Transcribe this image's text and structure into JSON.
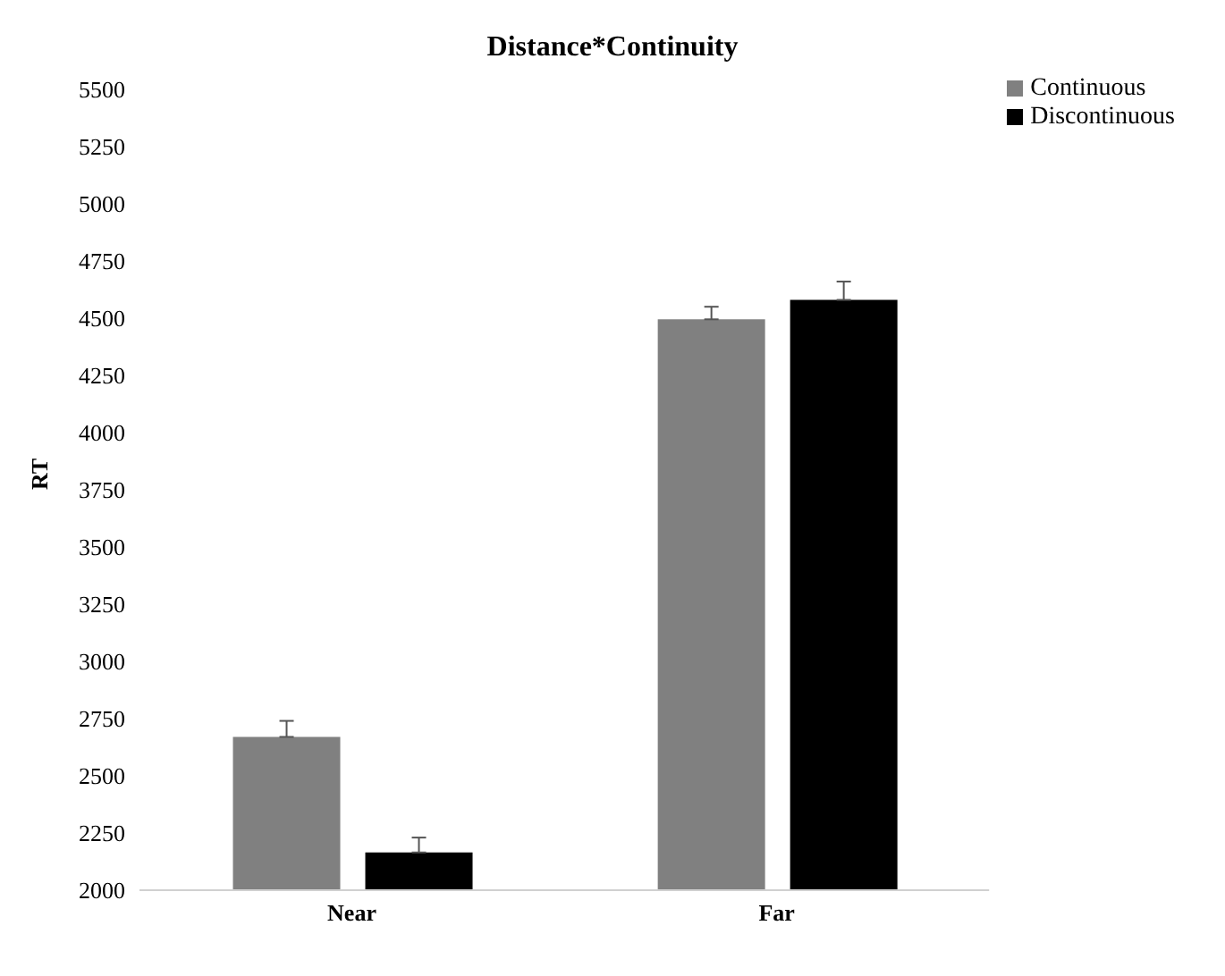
{
  "chart_data": {
    "type": "bar",
    "title": "Distance*Continuity",
    "ylabel": "RT",
    "categories": [
      "Near",
      "Far"
    ],
    "series": [
      {
        "name": "Continuous",
        "color": "#808080",
        "values": [
          2670,
          4495
        ],
        "errors": [
          [
            2670,
            2740
          ],
          [
            4495,
            4550
          ]
        ]
      },
      {
        "name": "Discontinuous",
        "color": "#000000",
        "values": [
          2165,
          4580
        ],
        "errors": [
          [
            2165,
            2230
          ],
          [
            4580,
            4660
          ]
        ]
      }
    ],
    "ylim": [
      2000,
      5500
    ],
    "yticks": [
      2000,
      2250,
      2500,
      2750,
      3000,
      3250,
      3500,
      3750,
      4000,
      4250,
      4500,
      4750,
      5000,
      5250,
      5500
    ],
    "grid": false,
    "legend": "top right"
  }
}
